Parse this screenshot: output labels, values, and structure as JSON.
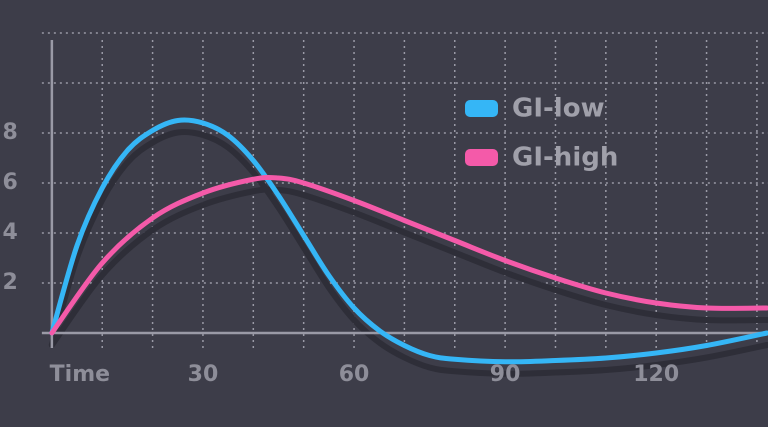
{
  "chart_data": {
    "type": "line",
    "x_label": "Time",
    "xlim": [
      -10.3,
      142.2
    ],
    "ylim": [
      -3.76,
      13.32
    ],
    "xticks": [
      30,
      60,
      90,
      120
    ],
    "yticks": [
      2,
      4,
      6,
      8
    ],
    "xgrid": [
      10,
      20,
      30,
      40,
      50,
      60,
      70,
      80,
      90,
      100,
      110,
      120,
      130,
      140
    ],
    "ygrid": [
      2,
      4,
      6,
      8,
      10,
      12
    ],
    "grid": true,
    "legend": "upper right",
    "series": [
      {
        "name": "GI-low",
        "color": "#35b6f6",
        "x": [
          0,
          5,
          10,
          15,
          20,
          25,
          30,
          35,
          40,
          45,
          50,
          55,
          60,
          65,
          70,
          75,
          80,
          90,
          100,
          110,
          120,
          130,
          142
        ],
        "values": [
          0,
          3.5,
          5.8,
          7.3,
          8.1,
          8.5,
          8.4,
          7.9,
          6.9,
          5.5,
          3.9,
          2.3,
          1.0,
          0.1,
          -0.5,
          -0.9,
          -1.05,
          -1.15,
          -1.1,
          -1.0,
          -0.8,
          -0.5,
          0
        ]
      },
      {
        "name": "GI-high",
        "color": "#f45aa9",
        "x": [
          0,
          10,
          20,
          30,
          40,
          45,
          50,
          60,
          70,
          80,
          90,
          100,
          110,
          120,
          130,
          142
        ],
        "values": [
          0,
          2.8,
          4.6,
          5.6,
          6.15,
          6.2,
          6.0,
          5.3,
          4.5,
          3.7,
          2.9,
          2.2,
          1.6,
          1.2,
          1.0,
          1.0
        ]
      }
    ]
  }
}
